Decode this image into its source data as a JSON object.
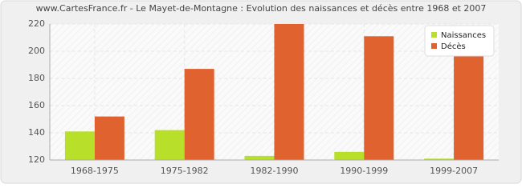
{
  "chart_data": {
    "type": "bar",
    "title": "www.CartesFrance.fr - Le Mayet-de-Montagne : Evolution des naissances et décès entre 1968 et 2007",
    "categories": [
      "1968-1975",
      "1975-1982",
      "1982-1990",
      "1990-1999",
      "1999-2007"
    ],
    "series": [
      {
        "name": "Naissances",
        "color": "#b8e02a",
        "values": [
          141,
          142,
          123,
          126,
          121
        ]
      },
      {
        "name": "Décès",
        "color": "#e0622e",
        "values": [
          152,
          187,
          220,
          211,
          200
        ]
      }
    ],
    "ylim": [
      120,
      220
    ],
    "yticks": [
      120,
      140,
      160,
      180,
      200,
      220
    ],
    "grid": true,
    "legend": "top-right"
  }
}
